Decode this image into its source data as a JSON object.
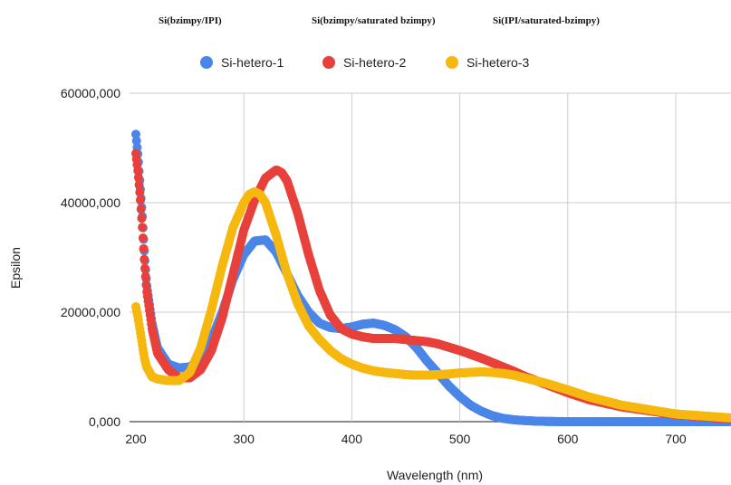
{
  "chart_data": {
    "type": "scatter",
    "titles": [
      "Si(bzimpy/IPI)",
      "Si(bzimpy/saturated bzimpy)",
      "Si(IPI/saturated-bzimpy)"
    ],
    "xlabel": "Wavelength (nm)",
    "ylabel": "Epsilon",
    "xlim": [
      195,
      750
    ],
    "ylim": [
      0,
      60000
    ],
    "x_ticks": [
      "200",
      "300",
      "400",
      "500",
      "600",
      "700"
    ],
    "y_ticks": [
      "0,000",
      "20000,000",
      "40000,000",
      "60000,000"
    ],
    "x_tick_values": [
      200,
      300,
      400,
      500,
      600,
      700
    ],
    "y_tick_values": [
      0,
      20000,
      40000,
      60000
    ],
    "grid": true,
    "legend_position": "top",
    "series": [
      {
        "name": "Si-hetero-1",
        "color": "#4a86e8",
        "x": [
          200,
          202,
          204,
          206,
          208,
          210,
          215,
          220,
          230,
          240,
          250,
          260,
          270,
          280,
          290,
          300,
          310,
          320,
          330,
          340,
          350,
          360,
          370,
          380,
          390,
          400,
          410,
          420,
          430,
          440,
          450,
          460,
          470,
          480,
          490,
          500,
          510,
          520,
          530,
          540,
          550,
          560,
          570,
          580,
          600,
          650,
          700,
          750
        ],
        "y": [
          52500,
          48500,
          43000,
          37500,
          30500,
          25000,
          18000,
          13500,
          10500,
          9800,
          10000,
          11500,
          15000,
          20000,
          26000,
          30500,
          33000,
          33200,
          31000,
          27000,
          23000,
          20000,
          18000,
          17200,
          17000,
          17300,
          17800,
          18000,
          17600,
          16800,
          15500,
          13500,
          11000,
          8800,
          6500,
          4600,
          3000,
          1900,
          1100,
          600,
          350,
          200,
          100,
          50,
          0,
          0,
          0,
          0
        ]
      },
      {
        "name": "Si-hetero-2",
        "color": "#e8403a",
        "x": [
          200,
          202,
          204,
          206,
          208,
          210,
          215,
          220,
          230,
          240,
          250,
          260,
          270,
          280,
          290,
          300,
          310,
          320,
          330,
          335,
          340,
          350,
          360,
          370,
          380,
          390,
          400,
          410,
          420,
          430,
          440,
          450,
          460,
          470,
          480,
          490,
          500,
          510,
          520,
          530,
          540,
          550,
          560,
          580,
          600,
          620,
          650,
          700,
          750
        ],
        "y": [
          49000,
          45500,
          41000,
          35500,
          29000,
          24000,
          17000,
          12500,
          9500,
          8000,
          8000,
          9500,
          13000,
          19000,
          27000,
          35000,
          40500,
          44500,
          46000,
          45500,
          44000,
          38000,
          30500,
          24000,
          19500,
          17000,
          16000,
          15500,
          15200,
          15200,
          15200,
          15000,
          14800,
          14600,
          14200,
          13600,
          13000,
          12300,
          11600,
          10800,
          10000,
          9200,
          8300,
          6800,
          5300,
          4000,
          2700,
          1300,
          500
        ]
      },
      {
        "name": "Si-hetero-3",
        "color": "#f6b80f",
        "x": [
          200,
          202,
          204,
          206,
          208,
          210,
          215,
          220,
          230,
          240,
          250,
          260,
          270,
          280,
          290,
          300,
          305,
          310,
          315,
          320,
          330,
          340,
          350,
          360,
          370,
          380,
          390,
          400,
          410,
          420,
          430,
          440,
          450,
          460,
          470,
          480,
          490,
          500,
          510,
          520,
          530,
          540,
          550,
          560,
          570,
          580,
          600,
          620,
          650,
          700,
          750
        ],
        "y": [
          21000,
          19000,
          16500,
          14000,
          11500,
          10000,
          8200,
          7800,
          7500,
          7500,
          9000,
          13500,
          20500,
          28500,
          35500,
          40000,
          41500,
          42000,
          41500,
          40000,
          34000,
          27000,
          21500,
          17500,
          15000,
          13000,
          11500,
          10500,
          9800,
          9300,
          9000,
          8800,
          8600,
          8500,
          8500,
          8600,
          8700,
          8900,
          9000,
          9100,
          9000,
          8800,
          8500,
          8000,
          7500,
          7000,
          5800,
          4500,
          3000,
          1400,
          700
        ]
      }
    ]
  }
}
